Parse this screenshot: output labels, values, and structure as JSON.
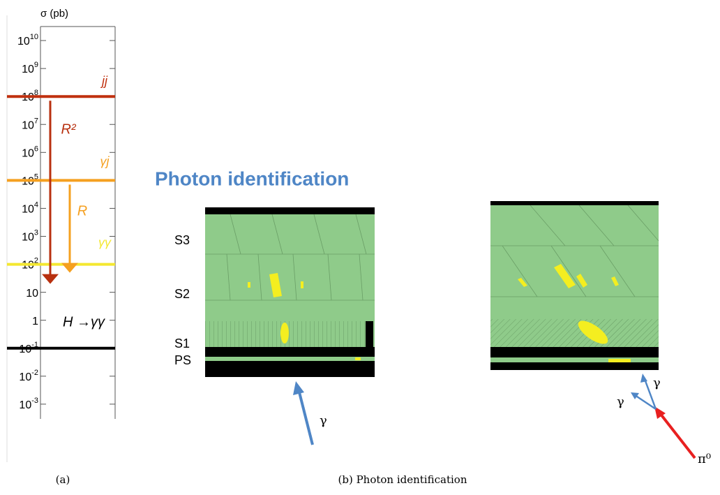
{
  "chart_data": {
    "type": "hline",
    "y_label": "σ (pb)",
    "log_scale": true,
    "ylim": [
      1e-05,
      100000000000
    ],
    "yticks": [
      {
        "value": 10000000000,
        "label": "10",
        "exponent": "10"
      },
      {
        "value": 1000000000,
        "label": "10",
        "exponent": "9"
      },
      {
        "value": 100000000,
        "label": "10",
        "exponent": "8"
      },
      {
        "value": 10000000,
        "label": "10",
        "exponent": "7"
      },
      {
        "value": 1000000,
        "label": "10",
        "exponent": "6"
      },
      {
        "value": 100000,
        "label": "10",
        "exponent": "5"
      },
      {
        "value": 10000,
        "label": "10",
        "exponent": "4"
      },
      {
        "value": 1000,
        "label": "10",
        "exponent": "3"
      },
      {
        "value": 100,
        "label": "10",
        "exponent": "2"
      },
      10,
      1,
      {
        "value": 0.1,
        "label": "10",
        "exponent": "-1"
      },
      {
        "value": 0.01,
        "label": "10",
        "exponent": "-2"
      },
      {
        "value": 0.001,
        "label": "10",
        "exponent": "-3"
      }
    ],
    "series": [
      {
        "name": "jj",
        "color": "#c0300f",
        "values": [
          100000000
        ]
      },
      {
        "name": "γj",
        "color": "#f5a020",
        "values": [
          100000
        ]
      },
      {
        "name": "γγ",
        "color": "#f4e830",
        "values": [
          100
        ]
      },
      {
        "name": "H →γγ",
        "color": "#000000",
        "values": [
          0.1
        ]
      }
    ],
    "arrows": [
      {
        "label": "R²",
        "color": "#b8300f",
        "from": 100000000,
        "to": 20
      },
      {
        "label": "R",
        "color": "#f5a020",
        "from": 100000,
        "to": 50
      }
    ]
  },
  "title": "Photon identification",
  "layers": [
    "S3",
    "S2",
    "S1",
    "PS"
  ],
  "particles": {
    "photon": "γ",
    "photon_a": "γ",
    "photon_b": "γ",
    "pion": "π⁰"
  },
  "captions": [
    "(a)",
    "(b) Photon identification"
  ]
}
